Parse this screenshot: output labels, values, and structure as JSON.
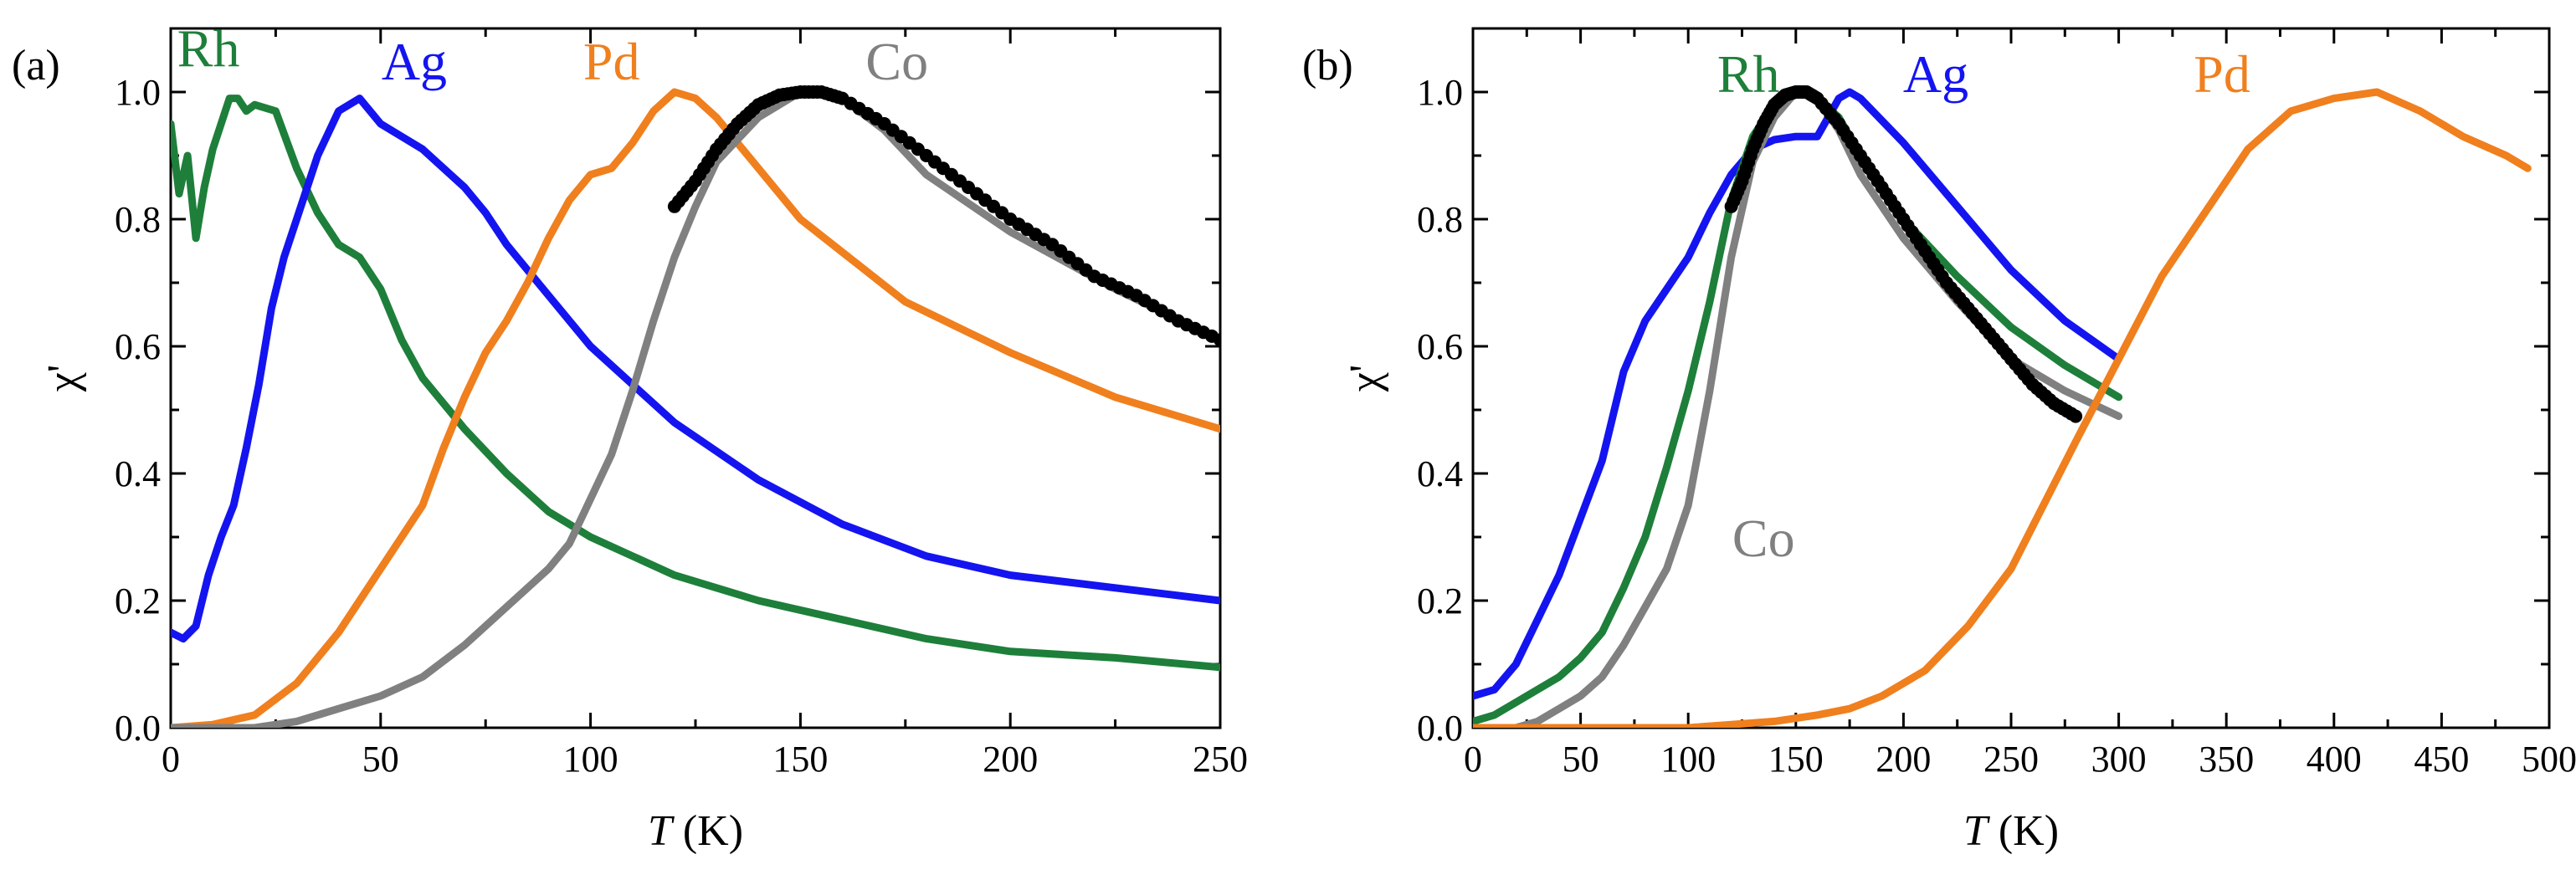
{
  "chart_data": [
    {
      "type": "line",
      "panel": "(a)",
      "xlabel_var": "T",
      "xlabel_unit": " (K)",
      "ylabel": "χ'",
      "xlim": [
        0,
        250
      ],
      "ylim": [
        0,
        1.1
      ],
      "xticks": [
        0,
        50,
        100,
        150,
        200,
        250
      ],
      "yticks": [
        0.0,
        0.2,
        0.4,
        0.6,
        0.8,
        1.0
      ],
      "tick_labels_x": [
        "0",
        "50",
        "100",
        "150",
        "200",
        "250"
      ],
      "tick_labels_y": [
        "0.0",
        "0.2",
        "0.4",
        "0.6",
        "0.8",
        "1.0"
      ],
      "series": [
        {
          "name": "Rh",
          "color": "#1e7f3a",
          "x": [
            0,
            2,
            4,
            6,
            8,
            10,
            12,
            14,
            16,
            18,
            20,
            25,
            30,
            35,
            40,
            45,
            50,
            55,
            60,
            70,
            80,
            90,
            100,
            110,
            120,
            140,
            160,
            180,
            200,
            225,
            250
          ],
          "y": [
            0.95,
            0.84,
            0.9,
            0.77,
            0.85,
            0.91,
            0.95,
            0.99,
            0.99,
            0.97,
            0.98,
            0.97,
            0.88,
            0.81,
            0.76,
            0.74,
            0.69,
            0.61,
            0.55,
            0.47,
            0.4,
            0.34,
            0.3,
            0.27,
            0.24,
            0.2,
            0.17,
            0.14,
            0.12,
            0.11,
            0.095
          ]
        },
        {
          "name": "Ag",
          "color": "#1414f0",
          "x": [
            0,
            3,
            6,
            9,
            12,
            15,
            18,
            21,
            24,
            27,
            30,
            35,
            40,
            45,
            50,
            55,
            60,
            65,
            70,
            75,
            80,
            90,
            100,
            120,
            140,
            160,
            180,
            200,
            225,
            250
          ],
          "y": [
            0.15,
            0.14,
            0.16,
            0.24,
            0.3,
            0.35,
            0.44,
            0.54,
            0.66,
            0.74,
            0.8,
            0.9,
            0.97,
            0.99,
            0.95,
            0.93,
            0.91,
            0.88,
            0.85,
            0.81,
            0.76,
            0.68,
            0.6,
            0.48,
            0.39,
            0.32,
            0.27,
            0.24,
            0.22,
            0.2
          ]
        },
        {
          "name": "Pd",
          "color": "#f07f1e",
          "x": [
            0,
            10,
            20,
            30,
            40,
            50,
            60,
            65,
            70,
            75,
            80,
            85,
            90,
            95,
            100,
            105,
            110,
            115,
            120,
            125,
            130,
            140,
            150,
            175,
            200,
            225,
            250
          ],
          "y": [
            0.0,
            0.005,
            0.02,
            0.07,
            0.15,
            0.25,
            0.35,
            0.44,
            0.52,
            0.59,
            0.64,
            0.7,
            0.77,
            0.83,
            0.87,
            0.88,
            0.92,
            0.97,
            1.0,
            0.99,
            0.96,
            0.88,
            0.8,
            0.67,
            0.59,
            0.52,
            0.47
          ]
        },
        {
          "name": "Co",
          "color": "#808080",
          "x": [
            0,
            20,
            30,
            40,
            50,
            60,
            70,
            80,
            90,
            95,
            100,
            105,
            110,
            115,
            120,
            125,
            130,
            140,
            150,
            155,
            160,
            170,
            180,
            200,
            225,
            250
          ],
          "y": [
            0.0,
            0.0,
            0.01,
            0.03,
            0.05,
            0.08,
            0.13,
            0.19,
            0.25,
            0.29,
            0.36,
            0.43,
            0.53,
            0.64,
            0.74,
            0.82,
            0.89,
            0.96,
            1.0,
            1.0,
            0.99,
            0.94,
            0.87,
            0.78,
            0.69,
            0.61
          ]
        },
        {
          "name": "Co data",
          "color": "#000000",
          "marker": "dots",
          "x": [
            120,
            125,
            130,
            135,
            140,
            145,
            150,
            155,
            160,
            170,
            180,
            190,
            200,
            210,
            220,
            230,
            240,
            250
          ],
          "y": [
            0.82,
            0.86,
            0.91,
            0.95,
            0.98,
            0.995,
            1.0,
            1.0,
            0.99,
            0.95,
            0.9,
            0.85,
            0.8,
            0.76,
            0.71,
            0.68,
            0.64,
            0.61
          ]
        }
      ],
      "labels": [
        {
          "text": "Rh",
          "color": "#1e7f3a",
          "x": 9,
          "y": 1.04
        },
        {
          "text": "Ag",
          "color": "#1414f0",
          "x": 58,
          "y": 1.02
        },
        {
          "text": "Pd",
          "color": "#f07f1e",
          "x": 105,
          "y": 1.02
        },
        {
          "text": "Co",
          "color": "#808080",
          "x": 173,
          "y": 1.02
        }
      ]
    },
    {
      "type": "line",
      "panel": "(b)",
      "xlabel_var": "T",
      "xlabel_unit": " (K)",
      "ylabel": "χ'",
      "xlim": [
        0,
        500
      ],
      "ylim": [
        0,
        1.1
      ],
      "xticks": [
        0,
        50,
        100,
        150,
        200,
        250,
        300,
        350,
        400,
        450,
        500
      ],
      "yticks": [
        0.0,
        0.2,
        0.4,
        0.6,
        0.8,
        1.0
      ],
      "tick_labels_x": [
        "0",
        "50",
        "100",
        "150",
        "200",
        "250",
        "300",
        "350",
        "400",
        "450",
        "500"
      ],
      "tick_labels_y": [
        "0.0",
        "0.2",
        "0.4",
        "0.6",
        "0.8",
        "1.0"
      ],
      "series": [
        {
          "name": "Ag",
          "color": "#1414f0",
          "x": [
            0,
            10,
            20,
            30,
            40,
            50,
            60,
            70,
            80,
            90,
            100,
            110,
            120,
            130,
            140,
            150,
            160,
            165,
            170,
            175,
            180,
            200,
            225,
            250,
            275,
            300
          ],
          "y": [
            0.05,
            0.06,
            0.1,
            0.17,
            0.24,
            0.33,
            0.42,
            0.56,
            0.64,
            0.69,
            0.74,
            0.81,
            0.87,
            0.91,
            0.925,
            0.93,
            0.93,
            0.96,
            0.99,
            1.0,
            0.99,
            0.92,
            0.82,
            0.72,
            0.64,
            0.58
          ]
        },
        {
          "name": "Rh",
          "color": "#1e7f3a",
          "x": [
            0,
            10,
            20,
            30,
            40,
            50,
            60,
            70,
            80,
            90,
            100,
            110,
            120,
            130,
            140,
            150,
            160,
            170,
            180,
            200,
            225,
            250,
            275,
            300
          ],
          "y": [
            0.01,
            0.02,
            0.04,
            0.06,
            0.08,
            0.11,
            0.15,
            0.22,
            0.3,
            0.41,
            0.53,
            0.67,
            0.83,
            0.93,
            0.98,
            1.0,
            0.99,
            0.96,
            0.9,
            0.8,
            0.71,
            0.63,
            0.57,
            0.52
          ]
        },
        {
          "name": "Co",
          "color": "#808080",
          "x": [
            0,
            20,
            30,
            40,
            50,
            60,
            70,
            80,
            90,
            100,
            110,
            120,
            130,
            140,
            150,
            160,
            170,
            180,
            200,
            225,
            250,
            275,
            300
          ],
          "y": [
            0.0,
            0.0,
            0.01,
            0.03,
            0.05,
            0.08,
            0.13,
            0.19,
            0.25,
            0.35,
            0.53,
            0.74,
            0.89,
            0.96,
            1.0,
            0.99,
            0.94,
            0.87,
            0.77,
            0.67,
            0.58,
            0.53,
            0.49
          ]
        },
        {
          "name": "Co data",
          "color": "#000000",
          "marker": "dots",
          "x": [
            120,
            125,
            130,
            135,
            140,
            145,
            150,
            155,
            160,
            170,
            180,
            190,
            200,
            210,
            220,
            230,
            240,
            250,
            260,
            270,
            280
          ],
          "y": [
            0.82,
            0.86,
            0.91,
            0.95,
            0.98,
            0.995,
            1.0,
            1.0,
            0.99,
            0.95,
            0.9,
            0.85,
            0.8,
            0.75,
            0.7,
            0.66,
            0.62,
            0.58,
            0.54,
            0.51,
            0.49
          ]
        },
        {
          "name": "Pd",
          "color": "#f07f1e",
          "x": [
            0,
            50,
            100,
            120,
            140,
            160,
            175,
            190,
            210,
            230,
            250,
            265,
            280,
            300,
            320,
            340,
            360,
            380,
            400,
            420,
            440,
            460,
            480,
            490
          ],
          "y": [
            0.0,
            0.0,
            0.0,
            0.005,
            0.01,
            0.02,
            0.03,
            0.05,
            0.09,
            0.16,
            0.25,
            0.35,
            0.45,
            0.58,
            0.71,
            0.81,
            0.91,
            0.97,
            0.99,
            1.0,
            0.97,
            0.93,
            0.9,
            0.88
          ]
        }
      ],
      "labels": [
        {
          "text": "Rh",
          "color": "#1e7f3a",
          "x": 128,
          "y": 1.0
        },
        {
          "text": "Ag",
          "color": "#1414f0",
          "x": 215,
          "y": 1.0
        },
        {
          "text": "Pd",
          "color": "#f07f1e",
          "x": 348,
          "y": 1.0
        },
        {
          "text": "Co",
          "color": "#808080",
          "x": 135,
          "y": 0.27
        }
      ]
    }
  ]
}
